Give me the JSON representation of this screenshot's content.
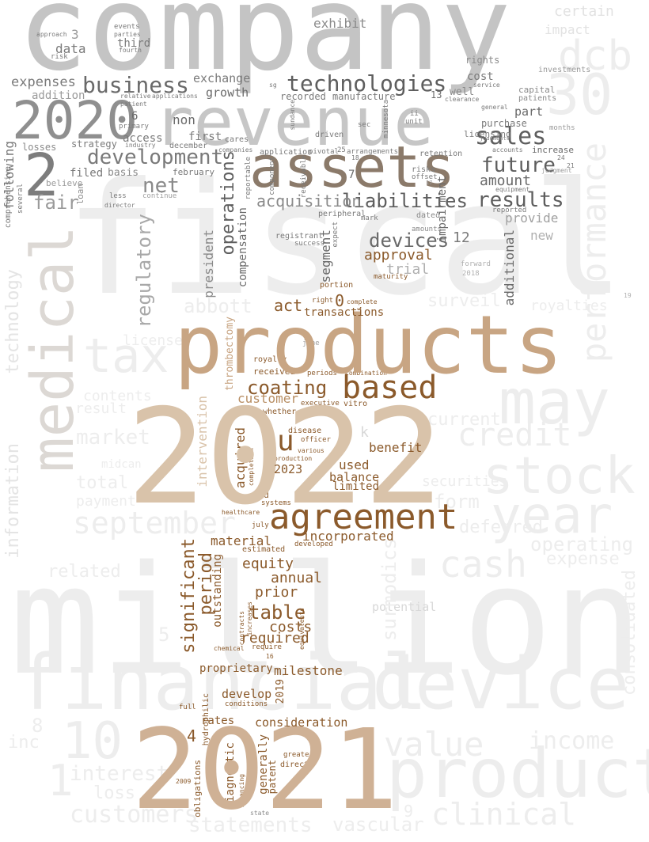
{
  "words": {
    "company": "company",
    "fiscal": "fiscal",
    "million": "million",
    "products": "products",
    "y2022": "2022",
    "y2021": "2021",
    "revenue": "revenue",
    "assets": "assets",
    "medical": "medical",
    "agreement": "agreement",
    "financial": "financial",
    "device": "device",
    "product": "product",
    "stock": "stock",
    "may": "may",
    "year": "year",
    "tax": "tax",
    "y2020": "2020",
    "n2": "2",
    "n30": "30",
    "n10": "10",
    "n1": "1",
    "technologies": "technologies",
    "business": "business",
    "development": "development",
    "sales": "sales",
    "future": "future",
    "liabilities": "liabilities",
    "results": "results",
    "devices": "devices",
    "based": "based",
    "coating": "coating",
    "net": "net",
    "u": "u",
    "fair": "fair",
    "operations": "operations",
    "acquisition": "acquisition",
    "approval": "approval",
    "regulatory": "regulatory",
    "significant": "significant",
    "period": "period",
    "table": "table",
    "costs": "costs",
    "required": "required",
    "prior": "prior",
    "annual": "annual",
    "equity": "equity",
    "material": "material",
    "incorporated": "incorporated",
    "act": "act",
    "o": "0",
    "transactions": "transactions",
    "customer": "customer",
    "used": "used",
    "balance": "balance",
    "limited": "limited",
    "benefit": "benefit",
    "y2023": "2023",
    "milestone": "milestone",
    "consideration": "consideration",
    "develop": "develop",
    "proprietary": "proprietary",
    "rates": "rates",
    "n4": "4",
    "generally": "generally",
    "diagnostic": "diagnostic",
    "patent": "patent",
    "dcb": "dcb",
    "performance": "performance",
    "including": "including",
    "credit": "credit",
    "september": "september",
    "cash": "cash",
    "value": "value",
    "clinical": "clinical",
    "customers": "customers",
    "statements": "statements",
    "vascular": "vascular",
    "consolidated": "consolidated",
    "income": "income",
    "operating": "operating",
    "expense": "expense",
    "surmodics": "surmodics",
    "information": "information",
    "technology": "technology",
    "interest": "interest",
    "loss": "loss",
    "market": "market",
    "total": "total",
    "inc": "inc",
    "form": "form",
    "current": "current",
    "securities": "securities",
    "abbott": "abbott",
    "related": "related",
    "expenses": "expenses",
    "exchange": "exchange",
    "growth": "growth",
    "addition": "addition",
    "data": "data",
    "cost": "cost",
    "well": "well",
    "part": "part",
    "purchase": "purchase",
    "non": "non",
    "access": "access",
    "first": "first",
    "december": "december",
    "strategy": "strategy",
    "basis": "basis",
    "filed": "filed",
    "february": "february",
    "believe": "believe",
    "following": "following",
    "losses": "losses",
    "amount": "amount",
    "provide": "provide",
    "new": "new",
    "additional": "additional",
    "trial": "trial",
    "president": "president",
    "compensation": "compensation",
    "segment": "segment",
    "impairment": "impairment",
    "acquired": "acquired",
    "intervention": "intervention",
    "thrombectomy": "thrombectomy",
    "outstanding": "outstanding",
    "exhibit": "exhibit",
    "third": "third",
    "n3": "3",
    "n6": "6",
    "n7": "7",
    "n12": "12",
    "n13": "13",
    "n0": "0",
    "certain": "certain",
    "impact": "impact",
    "rights": "rights",
    "recorded": "recorded",
    "manufacture": "manufacture",
    "licensing": "licensing",
    "increase": "increase",
    "capital": "capital",
    "patients": "patients",
    "investments": "investments",
    "driven": "driven",
    "cares": "cares",
    "retention": "retention",
    "receivable": "receivable",
    "reportable": "reportable",
    "component": "component",
    "application": "application",
    "pivotal": "pivotal",
    "arrangements": "arrangements",
    "risks": "risks",
    "offset": "offset",
    "peripheral": "peripheral",
    "mark": "mark",
    "dated": "dated",
    "amounts": "amounts",
    "registrant": "registrant",
    "success": "success",
    "expect": "expect",
    "portion": "portion",
    "right": "right",
    "complete": "complete",
    "effectiveness": "effectiveness",
    "maturity": "maturity",
    "june": "june",
    "royalty": "royalty",
    "received": "received",
    "periods": "periods",
    "combination": "combination",
    "whether": "whether",
    "executive": "executive",
    "vitro": "vitro",
    "disease": "disease",
    "officer": "officer",
    "various": "various",
    "production": "production",
    "completion": "completion",
    "systems": "systems",
    "healthcare": "healthcare",
    "july": "july",
    "developed": "developed",
    "estimated": "estimated",
    "increases": "increases",
    "contracts": "contracts",
    "chemical": "chemical",
    "require": "require",
    "equivalents": "equivalents",
    "hydrophilic": "hydrophilic",
    "full": "full",
    "conditions": "conditions",
    "obligations": "obligations",
    "financing": "financing",
    "greater": "greater",
    "direct": "direct",
    "state": "state",
    "potential": "potential",
    "pad": "pad",
    "surveil": "surveil",
    "royalties": "royalties",
    "license": "license",
    "contents": "contents",
    "result": "result",
    "deferred": "deferred",
    "payment": "payment",
    "midcan": "midcan",
    "primary": "primary",
    "industry": "industry",
    "events": "events",
    "parties": "parties",
    "fourth": "fourth",
    "approach": "approach",
    "risk": "risk",
    "relative": "relative",
    "applications": "applications",
    "patient": "patient",
    "loan": "loan",
    "less": "less",
    "director": "director",
    "continue": "continue",
    "comprehensive": "comprehensive",
    "several": "several",
    "companies": "companies",
    "sg": "sg",
    "minnesota": "minnesota",
    "sec": "sec",
    "unit": "unit",
    "sundance": "sundance",
    "clearance": "clearance",
    "service": "service",
    "general": "general",
    "judgments": "judgments",
    "months": "months",
    "accounts": "accounts",
    "equipment": "equipment",
    "reported": "reported",
    "judgment": "judgment",
    "forward": "forward",
    "y2018": "2018",
    "y2019": "2019",
    "y2009": "2009",
    "n16": "16",
    "n17": "17",
    "n18": "18",
    "n19": "19",
    "n21": "21",
    "n24": "24",
    "n25": "25",
    "n5": "5",
    "n8": "8",
    "n9": "9",
    "k": "k",
    "ii": "ii",
    "sales_big": "sales"
  },
  "colors": {
    "grey_dark": "#8f8f8f",
    "grey_mid": "#c2c2c2",
    "grey_light": "#dadada",
    "grey_faint": "#ededed",
    "grey_text": "#7a7a7a",
    "tan": "#c8a583",
    "tan_light": "#d9c3aa",
    "brown": "#8b5a2b",
    "brown_dark": "#6d4a2a",
    "taupe": "#8b7a6a",
    "olive_grey": "#5e5e5e",
    "background": "#ffffff"
  }
}
